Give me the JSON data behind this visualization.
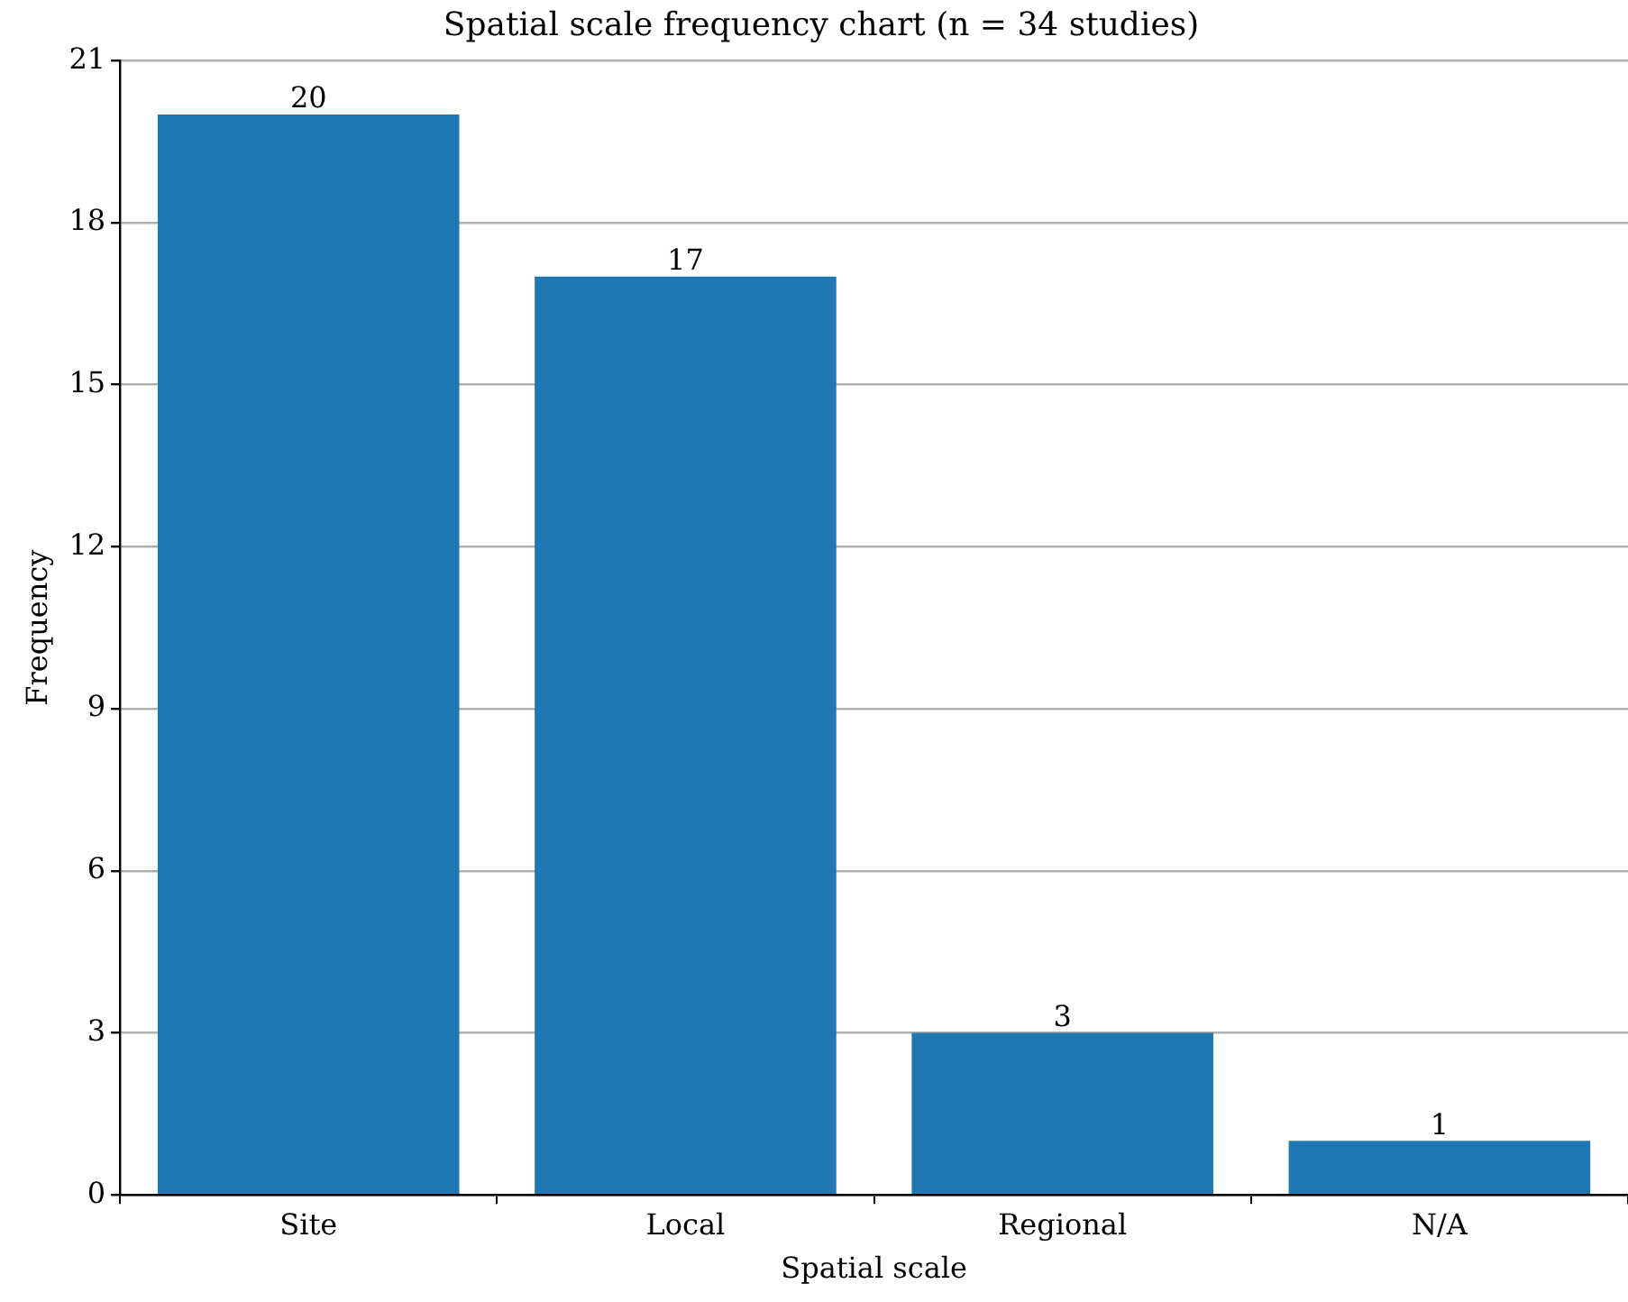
{
  "chart_data": {
    "type": "bar",
    "title": "Spatial scale frequency chart (n = 34 studies)",
    "xlabel": "Spatial scale",
    "ylabel": "Frequency",
    "categories": [
      "Site",
      "Local",
      "Regional",
      "N/A"
    ],
    "values": [
      20,
      17,
      3,
      1
    ],
    "color": "#1f77b4",
    "ylim": [
      0,
      21
    ],
    "yticks": [
      0,
      3,
      6,
      9,
      12,
      15,
      18,
      21
    ],
    "grid": "y",
    "data_labels": true
  }
}
